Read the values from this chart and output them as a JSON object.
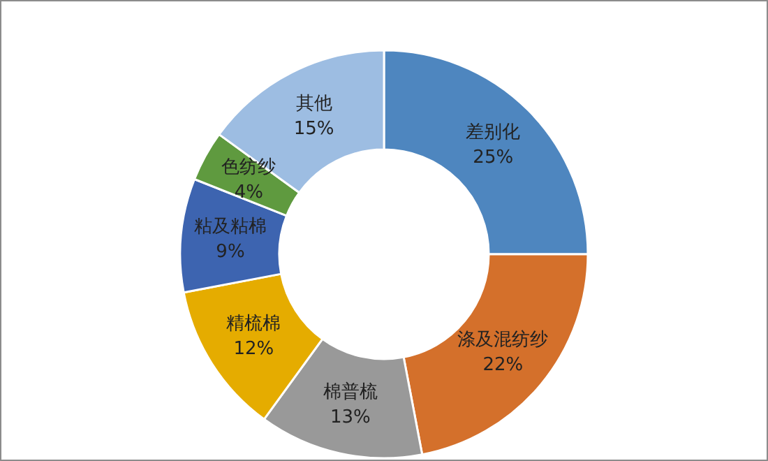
{
  "chart_data": {
    "type": "donut",
    "categories": [
      "差别化",
      "涤及混纺纱",
      "棉普梳",
      "精梳棉",
      "粘及粘棉",
      "色纺纱",
      "其他"
    ],
    "values": [
      25,
      22,
      13,
      12,
      9,
      4,
      15
    ],
    "colors": [
      "#4e86bf",
      "#d4702b",
      "#999999",
      "#e5ac00",
      "#3d64b0",
      "#5f9a3f",
      "#9dbde2"
    ],
    "value_labels": [
      "25%",
      "22%",
      "13%",
      "12%",
      "9%",
      "4%",
      "15%"
    ],
    "legend": false
  }
}
